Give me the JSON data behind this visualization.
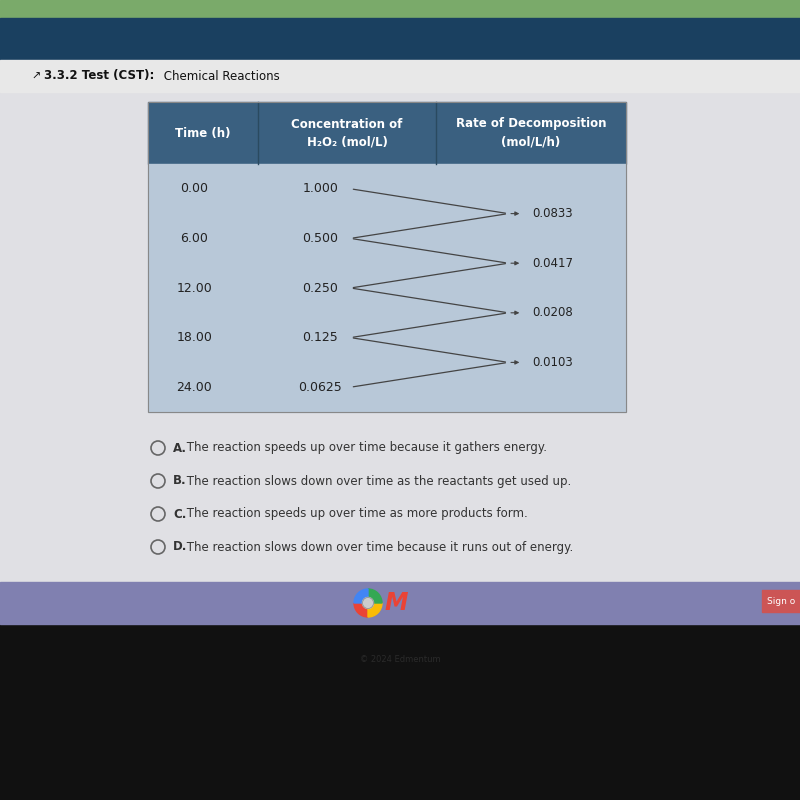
{
  "title_bold": "3.3.2 Test (CST):",
  "title_normal": " Chemical Reactions",
  "table_headers": [
    "Time (h)",
    "Concentration of\nH₂O₂ (mol/L)",
    "Rate of Decomposition\n(mol/L/h)"
  ],
  "times": [
    "0.00",
    "6.00",
    "12.00",
    "18.00",
    "24.00"
  ],
  "concs": [
    "1.000",
    "0.500",
    "0.250",
    "0.125",
    "0.0625"
  ],
  "rates": [
    "0.0833",
    "0.0417",
    "0.0208",
    "0.0103"
  ],
  "answers": [
    [
      "A.",
      " The reaction speeds up over time because it gathers energy."
    ],
    [
      "B.",
      " The reaction slows down over time as the reactants get used up."
    ],
    [
      "C.",
      " The reaction speeds up over time as more products form."
    ],
    [
      "D.",
      " The reaction slows down over time because it runs out of energy."
    ]
  ],
  "bg_green": "#7aaa6a",
  "bg_navy": "#1a4060",
  "bg_title_bar": "#e8e8e8",
  "bg_screen": "#e0e0e4",
  "bg_table_header": "#3a6080",
  "bg_table_body": "#b8c8d8",
  "bg_taskbar": "#8080b0",
  "bg_bottom": "#111111",
  "bg_signin": "#cc5555",
  "header_text_color": "#ffffff",
  "body_text_color": "#222222",
  "title_text_color": "#111111",
  "answer_text_color": "#333333",
  "previous_color": "#2255aa",
  "arrow_color": "#444444",
  "circle_color": "#666666"
}
